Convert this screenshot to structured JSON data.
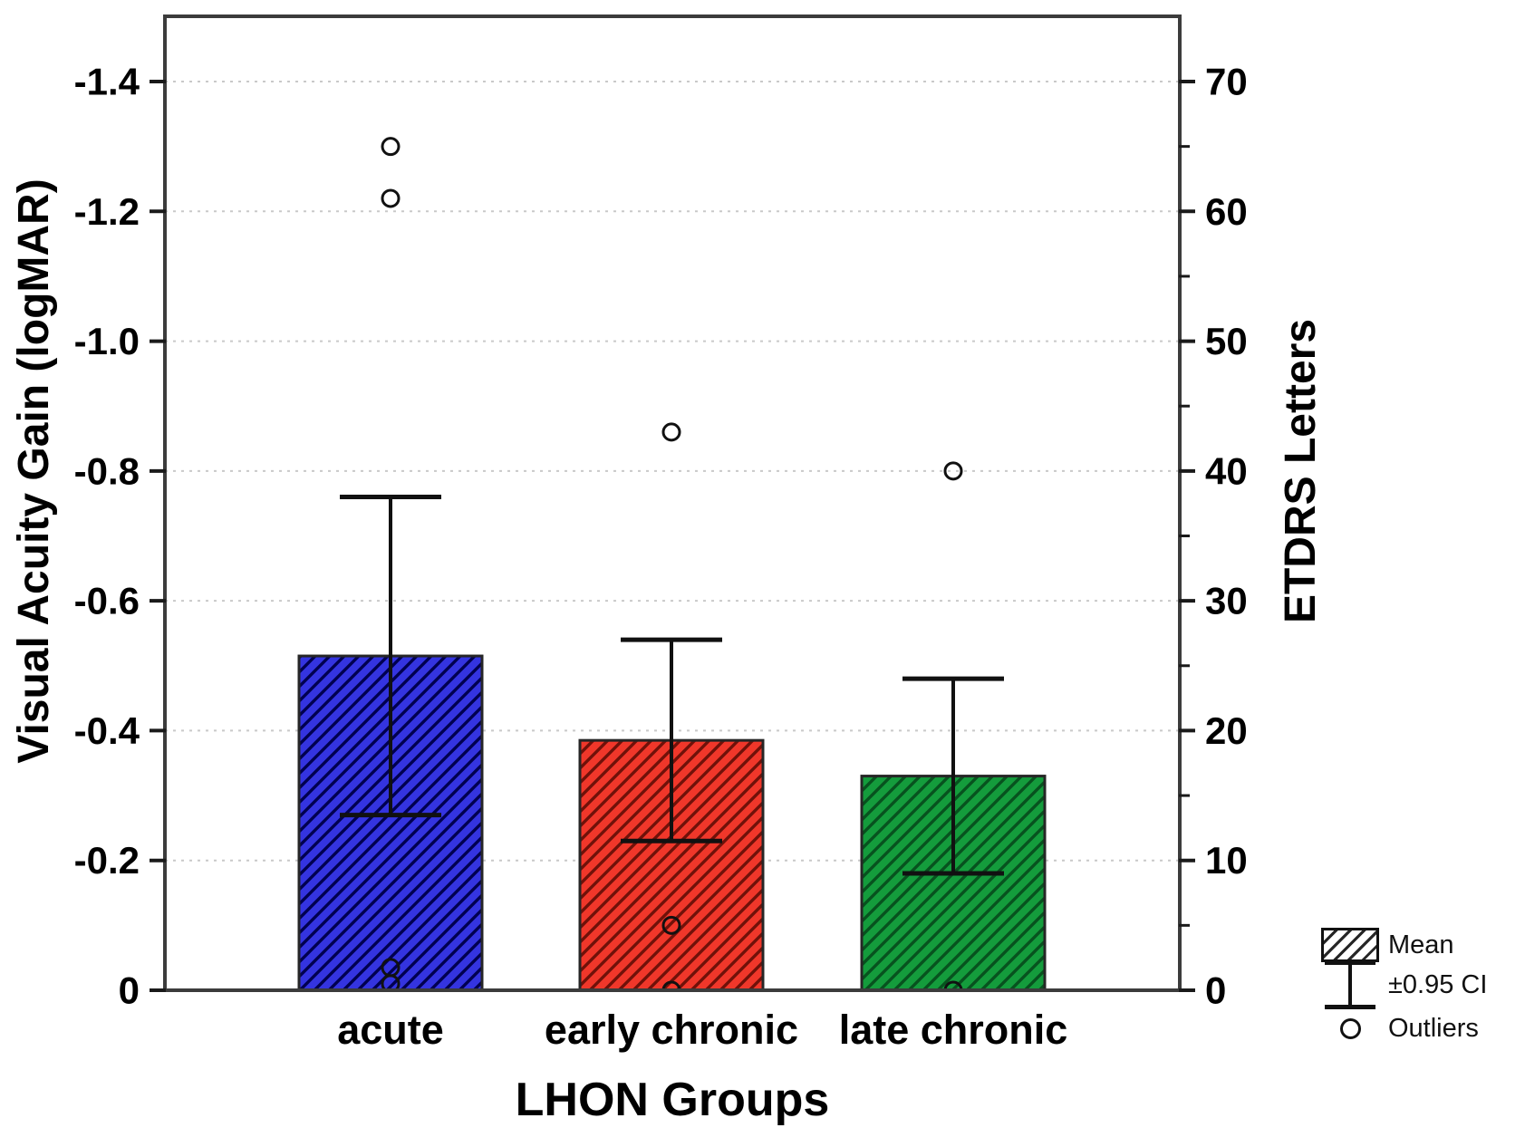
{
  "chart_data": {
    "type": "bar",
    "title": "",
    "xlabel": "LHON Groups",
    "categories": [
      "acute",
      "early chronic",
      "late chronic"
    ],
    "series": [
      {
        "name": "Mean",
        "values": [
          -0.515,
          -0.385,
          -0.33
        ],
        "ci_upper": [
          -0.76,
          -0.54,
          -0.48
        ],
        "ci_lower": [
          -0.27,
          -0.23,
          -0.18
        ],
        "bar_colors": [
          "#3434E0",
          "#F0372A",
          "#149C3C"
        ],
        "hatch_colors": [
          "#000050",
          "#701109",
          "#07521E"
        ]
      }
    ],
    "outliers": [
      {
        "category": "acute",
        "values": [
          -1.3,
          -1.22,
          -0.035,
          -0.01
        ]
      },
      {
        "category": "early chronic",
        "values": [
          -0.86,
          -0.1,
          0.0
        ]
      },
      {
        "category": "late chronic",
        "values": [
          -0.8,
          0.0
        ]
      }
    ],
    "y_axis_left": {
      "label": "Visual Acuity Gain (logMAR)",
      "tick_values": [
        -1.4,
        -1.2,
        -1.0,
        -0.8,
        -0.6,
        -0.4,
        -0.2,
        0
      ],
      "tick_labels": [
        "-1.4",
        "-1.2",
        "-1.0",
        "-0.8",
        "-0.6",
        "-0.4",
        "-0.2",
        "0"
      ],
      "range_bottom": 0,
      "range_top": -1.5,
      "inverted": true
    },
    "y_axis_right": {
      "label": "ETDRS Letters",
      "tick_values": [
        70,
        60,
        50,
        40,
        30,
        20,
        10,
        0
      ],
      "tick_labels": [
        "70",
        "60",
        "50",
        "40",
        "30",
        "20",
        "10",
        "0"
      ],
      "minor_tick_step": 5,
      "range_bottom": 0,
      "range_top": 75
    },
    "grid": {
      "horizontal": true,
      "style": "dotted",
      "color": "#c9c9c9"
    },
    "legend": {
      "position": "bottom-right",
      "items": [
        {
          "icon": "hatched-box",
          "label": "Mean"
        },
        {
          "icon": "error-bar",
          "label": "±0.95 CI"
        },
        {
          "icon": "circle",
          "label": "Outliers"
        }
      ]
    }
  }
}
